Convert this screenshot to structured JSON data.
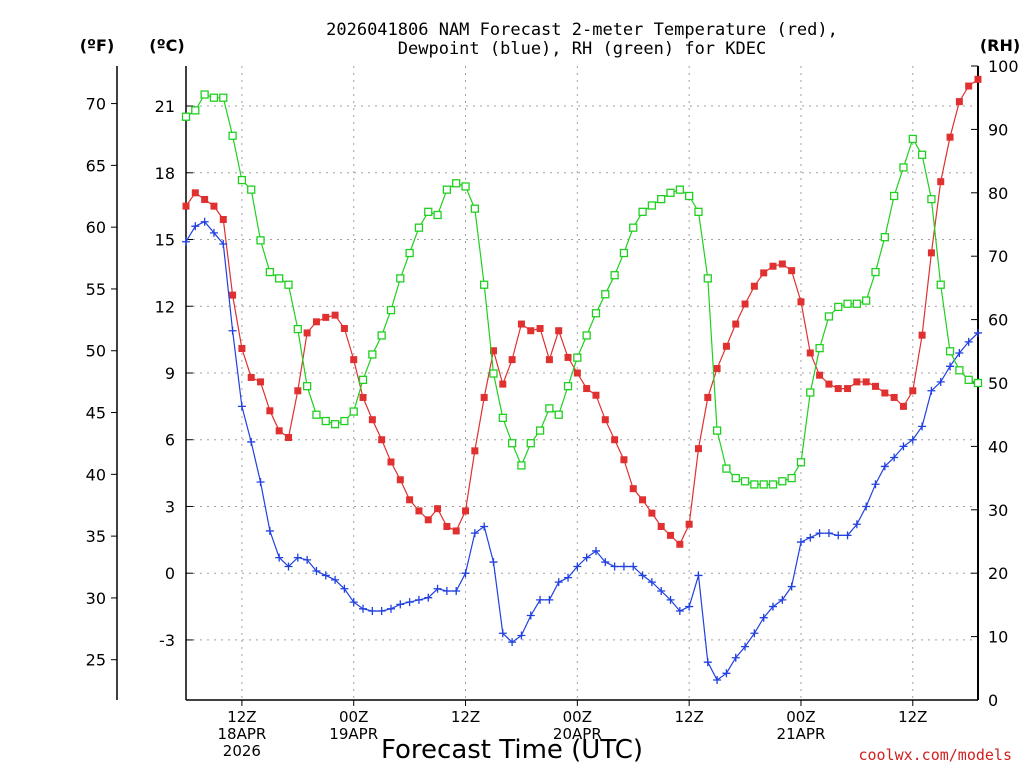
{
  "chart_data": {
    "type": "line",
    "title_line1": "2026041806 NAM Forecast 2-meter Temperature (red),",
    "title_line2": "Dewpoint (blue), RH (green) for KDEC",
    "xlabel": "Forecast Time (UTC)",
    "credit": "coolwx.com/models",
    "units": {
      "fahrenheit": "(ºF)",
      "celsius": "(ºC)",
      "rh": "(RH)"
    },
    "x_range_hours": [
      0,
      85
    ],
    "x_tick_marks": [
      {
        "hour": 6,
        "lines": [
          "12Z",
          "18APR",
          "2026"
        ]
      },
      {
        "hour": 18,
        "lines": [
          "00Z",
          "19APR"
        ]
      },
      {
        "hour": 30,
        "lines": [
          "12Z"
        ]
      },
      {
        "hour": 42,
        "lines": [
          "00Z",
          "20APR"
        ]
      },
      {
        "hour": 54,
        "lines": [
          "12Z"
        ]
      },
      {
        "hour": 66,
        "lines": [
          "00Z",
          "21APR"
        ]
      },
      {
        "hour": 78,
        "lines": [
          "12Z"
        ]
      }
    ],
    "y_celsius": {
      "range": [
        -5.7,
        22.8
      ],
      "ticks": [
        "21",
        "18",
        "15",
        "12",
        "9",
        "6",
        "3",
        "0",
        "-3"
      ],
      "tick_values": [
        21,
        18,
        15,
        12,
        9,
        6,
        3,
        0,
        -3
      ]
    },
    "y_fahrenheit": {
      "ticks": [
        "70",
        "65",
        "60",
        "55",
        "50",
        "45",
        "40",
        "35",
        "30",
        "25"
      ],
      "tick_values": [
        70,
        65,
        60,
        55,
        50,
        45,
        40,
        35,
        30,
        25
      ]
    },
    "y_rh": {
      "range": [
        0,
        100
      ],
      "ticks": [
        "100",
        "90",
        "80",
        "70",
        "60",
        "50",
        "40",
        "30",
        "20",
        "10",
        "0"
      ],
      "tick_values": [
        100,
        90,
        80,
        70,
        60,
        50,
        40,
        30,
        20,
        10,
        0
      ]
    },
    "series": [
      {
        "name": "Temperature",
        "axis": "celsius",
        "color": "#e03030",
        "marker": "filled-square",
        "values": [
          16.5,
          17.1,
          16.8,
          16.5,
          15.9,
          12.5,
          10.1,
          8.8,
          8.6,
          7.3,
          6.4,
          6.1,
          8.2,
          10.8,
          11.3,
          11.5,
          11.6,
          11.0,
          9.6,
          7.9,
          6.9,
          6.0,
          5.0,
          4.2,
          3.3,
          2.8,
          2.4,
          2.9,
          2.1,
          1.9,
          2.8,
          5.5,
          7.9,
          10.0,
          8.5,
          9.6,
          11.2,
          10.9,
          11.0,
          9.6,
          10.9,
          9.7,
          9.0,
          8.3,
          8.0,
          6.9,
          6.0,
          5.1,
          3.8,
          3.3,
          2.7,
          2.1,
          1.7,
          1.3,
          2.2,
          5.6,
          7.9,
          9.2,
          10.2,
          11.2,
          12.1,
          12.9,
          13.5,
          13.8,
          13.9,
          13.6,
          12.2,
          9.9,
          8.9,
          8.5,
          8.3,
          8.3,
          8.6,
          8.6,
          8.4,
          8.1,
          7.9,
          7.5,
          8.2,
          10.7,
          14.4,
          17.6,
          19.6,
          21.2,
          21.9,
          22.2
        ]
      },
      {
        "name": "Dewpoint",
        "axis": "celsius",
        "color": "#2040e0",
        "marker": "plus",
        "values": [
          14.9,
          15.6,
          15.8,
          15.3,
          14.8,
          10.9,
          7.5,
          5.9,
          4.1,
          1.9,
          0.7,
          0.3,
          0.7,
          0.6,
          0.1,
          -0.1,
          -0.3,
          -0.7,
          -1.3,
          -1.6,
          -1.7,
          -1.7,
          -1.6,
          -1.4,
          -1.3,
          -1.2,
          -1.1,
          -0.7,
          -0.8,
          -0.8,
          0.0,
          1.8,
          2.1,
          0.5,
          -2.7,
          -3.1,
          -2.8,
          -1.9,
          -1.2,
          -1.2,
          -0.4,
          -0.2,
          0.3,
          0.7,
          1.0,
          0.5,
          0.3,
          0.3,
          0.3,
          -0.1,
          -0.4,
          -0.8,
          -1.2,
          -1.7,
          -1.5,
          -0.1,
          -4.0,
          -4.8,
          -4.5,
          -3.8,
          -3.3,
          -2.7,
          -2.0,
          -1.5,
          -1.2,
          -0.6,
          1.4,
          1.6,
          1.8,
          1.8,
          1.7,
          1.7,
          2.2,
          3.0,
          4.0,
          4.8,
          5.2,
          5.7,
          6.0,
          6.6,
          8.2,
          8.6,
          9.3,
          9.9,
          10.4,
          10.8
        ]
      },
      {
        "name": "RH",
        "axis": "rh",
        "color": "#20d020",
        "marker": "open-square",
        "values": [
          92,
          93,
          95.5,
          95,
          95,
          89,
          82,
          80.5,
          72.5,
          67.5,
          66.5,
          65.5,
          58.5,
          49.5,
          45,
          44,
          43.5,
          44,
          45.5,
          50.5,
          54.5,
          57.5,
          61.5,
          66.5,
          70.5,
          74.5,
          77,
          76.5,
          80.5,
          81.5,
          81,
          77.5,
          65.5,
          51.5,
          44.5,
          40.5,
          37,
          40.5,
          42.5,
          46,
          45,
          49.5,
          54,
          57.5,
          61,
          64,
          67,
          70.5,
          74.5,
          77,
          78,
          79,
          80,
          80.5,
          79.5,
          77,
          66.5,
          42.5,
          36.5,
          35,
          34.5,
          34,
          34,
          34,
          34.5,
          35,
          37.5,
          48.5,
          55.5,
          60.5,
          62,
          62.5,
          62.5,
          63,
          67.5,
          73,
          79.5,
          84,
          88.5,
          86,
          79,
          65.5,
          55,
          52,
          50.5,
          50
        ]
      }
    ]
  }
}
